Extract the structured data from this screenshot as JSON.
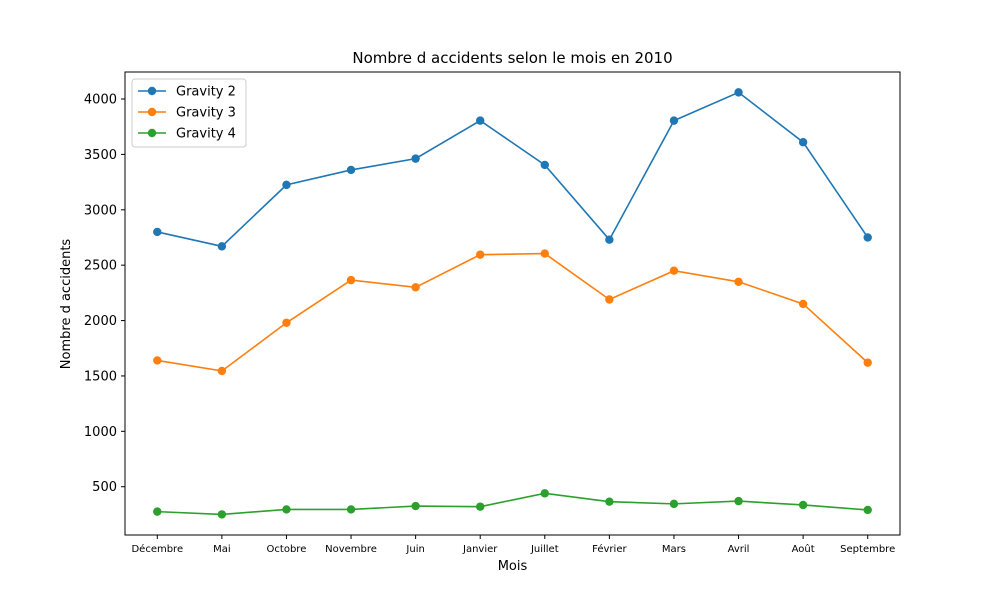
{
  "chart_data": {
    "type": "line",
    "title": "Nombre d accidents selon le mois en 2010",
    "xlabel": "Mois",
    "ylabel": "Nombre d accidents",
    "categories": [
      "Décembre",
      "Mai",
      "Octobre",
      "Novembre",
      "Juin",
      "Janvier",
      "Juillet",
      "Février",
      "Mars",
      "Avril",
      "Août",
      "Septembre"
    ],
    "ylim": [
      64,
      4244
    ],
    "yticks": [
      500,
      1000,
      1500,
      2000,
      2500,
      3000,
      3500,
      4000
    ],
    "grid": false,
    "legend": "top-left",
    "series": [
      {
        "name": "Gravity 2",
        "color": "#1f77b4",
        "values": [
          2800,
          2670,
          3225,
          3360,
          3462,
          3805,
          3405,
          2730,
          3805,
          4060,
          3610,
          2750
        ]
      },
      {
        "name": "Gravity 3",
        "color": "#ff7f0e",
        "values": [
          1640,
          1545,
          1980,
          2365,
          2300,
          2595,
          2605,
          2190,
          2450,
          2350,
          2150,
          1620
        ]
      },
      {
        "name": "Gravity 4",
        "color": "#2ca02c",
        "values": [
          275,
          250,
          295,
          295,
          325,
          320,
          440,
          365,
          345,
          370,
          335,
          290
        ]
      }
    ]
  }
}
